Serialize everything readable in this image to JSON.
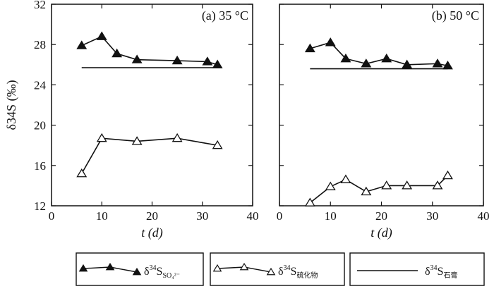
{
  "chart_data": [
    {
      "type": "line",
      "panel_label": "(a) 35 °C",
      "xlabel": "t (d)",
      "ylabel": "δ34S (‰)",
      "xlim": [
        0,
        40
      ],
      "ylim": [
        12,
        32
      ],
      "xticks": [
        0,
        10,
        20,
        30,
        40
      ],
      "yticks": [
        12,
        16,
        20,
        24,
        28,
        32
      ],
      "grid": false,
      "series": [
        {
          "name": "δ34S SO4²⁻",
          "marker": "filled-triangle",
          "x": [
            6,
            10,
            13,
            17,
            25,
            31,
            33
          ],
          "y": [
            27.9,
            28.8,
            27.1,
            26.5,
            26.4,
            26.3,
            26.0
          ]
        },
        {
          "name": "δ34S 硫化物",
          "marker": "open-triangle",
          "x": [
            6,
            10,
            17,
            25,
            33
          ],
          "y": [
            15.2,
            18.7,
            18.4,
            18.7,
            18.0
          ]
        },
        {
          "name": "δ34S 石膏",
          "marker": "none",
          "x": [
            6,
            33
          ],
          "y": [
            25.7,
            25.7
          ]
        }
      ]
    },
    {
      "type": "line",
      "panel_label": "(b) 50 °C",
      "xlabel": "t (d)",
      "ylabel": "",
      "xlim": [
        0,
        40
      ],
      "ylim": [
        12,
        32
      ],
      "xticks": [
        0,
        10,
        20,
        30,
        40
      ],
      "yticks": [
        12,
        16,
        20,
        24,
        28,
        32
      ],
      "grid": false,
      "series": [
        {
          "name": "δ34S SO4²⁻",
          "marker": "filled-triangle",
          "x": [
            6,
            10,
            13,
            17,
            21,
            25,
            31,
            33
          ],
          "y": [
            27.6,
            28.2,
            26.6,
            26.1,
            26.6,
            26.0,
            26.1,
            25.9
          ]
        },
        {
          "name": "δ34S 硫化物",
          "marker": "open-triangle",
          "x": [
            6,
            10,
            13,
            17,
            21,
            25,
            31,
            33
          ],
          "y": [
            12.3,
            13.9,
            14.6,
            13.4,
            14.0,
            14.0,
            14.0,
            15.0
          ]
        },
        {
          "name": "δ34S 石膏",
          "marker": "none",
          "x": [
            6,
            33
          ],
          "y": [
            25.6,
            25.6
          ]
        }
      ]
    }
  ],
  "legend": {
    "position": "bottom",
    "items": [
      {
        "symbol": "filled-triangle",
        "prefix": "δ",
        "sup": "34",
        "main": "S",
        "sub": "SO₄²⁻"
      },
      {
        "symbol": "open-triangle",
        "prefix": "δ",
        "sup": "34",
        "main": "S",
        "sub": "硫化物"
      },
      {
        "symbol": "line",
        "prefix": "δ",
        "sup": "34",
        "main": "S",
        "sub": "石膏"
      }
    ]
  },
  "colors": {
    "ink": "#111111",
    "background": "#ffffff"
  }
}
